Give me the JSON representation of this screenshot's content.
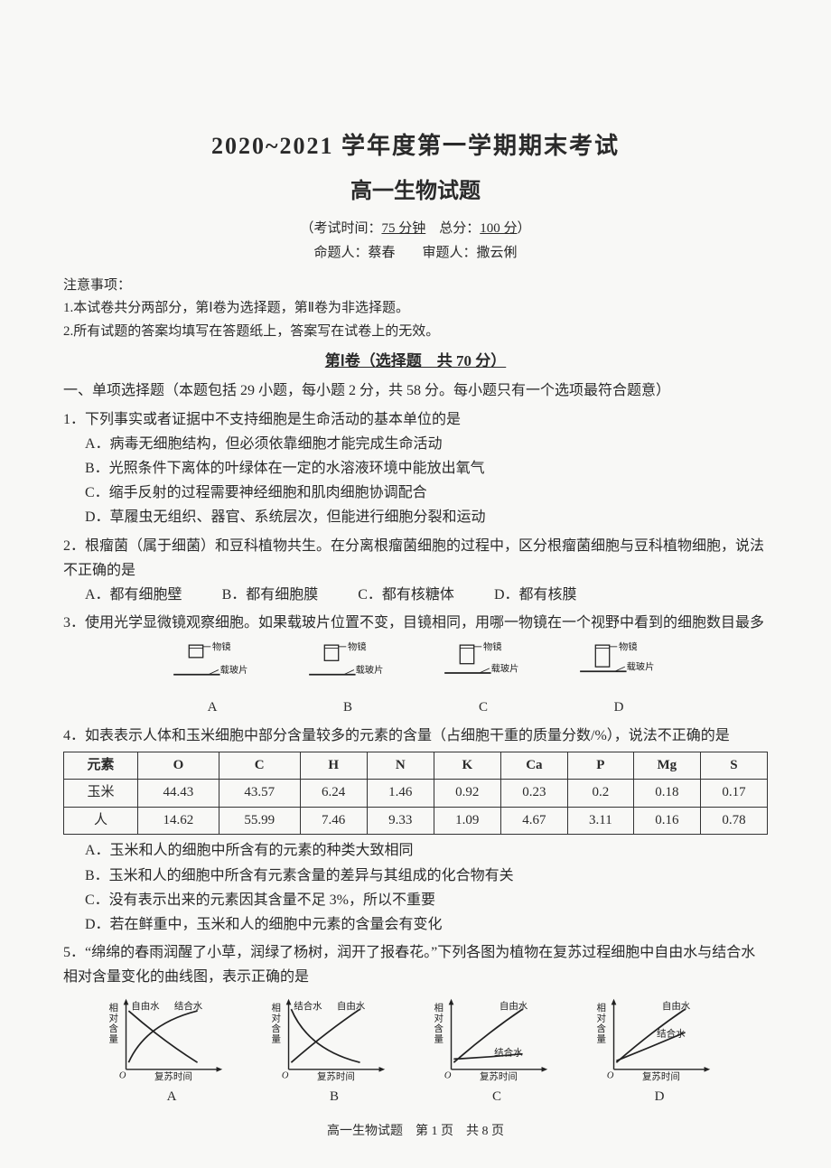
{
  "header": {
    "title_main": "2020~2021 学年度第一学期期末考试",
    "title_sub": "高一生物试题",
    "info": "（考试时间：75 分钟　总分：100 分）",
    "credit": "命题人：蔡春　　审题人：撒云俐"
  },
  "notice": {
    "head": "注意事项：",
    "line1": "1.本试卷共分两部分，第Ⅰ卷为选择题，第Ⅱ卷为非选择题。",
    "line2": "2.所有试题的答案均填写在答题纸上，答案写在试卷上的无效。"
  },
  "section1_title": "第Ⅰ卷（选择题　共 70 分）",
  "section1_instr": "一、单项选择题（本题包括 29 小题，每小题 2 分，共 58 分。每小题只有一个选项最符合题意）",
  "q1": {
    "stem": "1．下列事实或者证据中不支持细胞是生命活动的基本单位的是",
    "A": "A．病毒无细胞结构，但必须依靠细胞才能完成生命活动",
    "B": "B．光照条件下离体的叶绿体在一定的水溶液环境中能放出氧气",
    "C": "C．缩手反射的过程需要神经细胞和肌肉细胞协调配合",
    "D": "D．草履虫无组织、器官、系统层次，但能进行细胞分裂和运动"
  },
  "q2": {
    "stem": "2．根瘤菌（属于细菌）和豆科植物共生。在分离根瘤菌细胞的过程中，区分根瘤菌细胞与豆科植物细胞，说法不正确的是",
    "A": "A．都有细胞壁",
    "B": "B．都有细胞膜",
    "C": "C．都有核糖体",
    "D": "D．都有核膜"
  },
  "q3": {
    "stem": "3．使用光学显微镜观察细胞。如果载玻片位置不变，目镜相同，用哪一物镜在一个视野中看到的细胞数目最多",
    "lens_label": "物镜",
    "slide_label": "载玻片",
    "options": [
      "A",
      "B",
      "C",
      "D"
    ],
    "lens_gaps": [
      22,
      18,
      12,
      6
    ],
    "lens_lengths": [
      16,
      20,
      24,
      28
    ]
  },
  "q4": {
    "stem": "4．如表表示人体和玉米细胞中部分含量较多的元素的含量（占细胞干重的质量分数/%），说法不正确的是",
    "columns": [
      "元素",
      "O",
      "C",
      "H",
      "N",
      "K",
      "Ca",
      "P",
      "Mg",
      "S"
    ],
    "rows": [
      [
        "玉米",
        "44.43",
        "43.57",
        "6.24",
        "1.46",
        "0.92",
        "0.23",
        "0.2",
        "0.18",
        "0.17"
      ],
      [
        "人",
        "14.62",
        "55.99",
        "7.46",
        "9.33",
        "1.09",
        "4.67",
        "3.11",
        "0.16",
        "0.78"
      ]
    ],
    "A": "A．玉米和人的细胞中所含有的元素的种类大致相同",
    "B": "B．玉米和人的细胞中所含有元素含量的差异与其组成的化合物有关",
    "C": "C．没有表示出来的元素因其含量不足 3%，所以不重要",
    "D": "D．若在鲜重中，玉米和人的细胞中元素的含量会有变化"
  },
  "q5": {
    "stem": "5．“绵绵的春雨润醒了小草，润绿了杨树，润开了报春花。”下列各图为植物在复苏过程细胞中自由水与结合水相对含量变化的曲线图，表示正确的是",
    "ylabel": "相对含量",
    "xlabel": "复苏时间",
    "free_label": "自由水",
    "bound_label": "结合水",
    "options": [
      "A",
      "B",
      "C",
      "D"
    ],
    "stroke": "#222",
    "charts": {
      "A": {
        "free": "rising_convex",
        "bound": "falling",
        "free_pos": "upper_left",
        "bound_pos": "upper_right"
      },
      "B": {
        "free": "rising",
        "bound": "falling_convex",
        "free_pos": "upper_right",
        "bound_pos": "upper_left"
      },
      "C": {
        "free": "rising",
        "bound": "low_flat",
        "free_pos": "upper_right",
        "bound_pos": "lower_right"
      },
      "D": {
        "free": "rising",
        "bound": "rising_low",
        "free_pos": "upper_right",
        "bound_pos": "mid_right"
      }
    }
  },
  "footer": "高一生物试题　第 1 页　共 8 页"
}
